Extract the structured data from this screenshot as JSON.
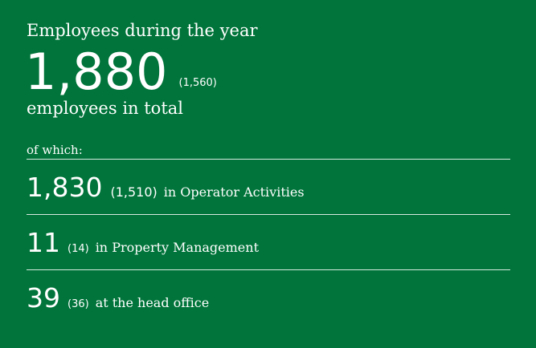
{
  "title": "Employees during the year",
  "total": {
    "value": "1,880",
    "previous": "(1,560)",
    "caption": "employees in total"
  },
  "breakdown": {
    "label": "of which:",
    "rows": [
      {
        "value": "1,830",
        "previous": "(1,510)",
        "label": "in Operator Activities"
      },
      {
        "value": "11",
        "previous": "(14)",
        "label": "in Property Management"
      },
      {
        "value": "39",
        "previous": "(36)",
        "label": "at the head office"
      }
    ]
  },
  "colors": {
    "background": "#00743a",
    "text": "#ffffff"
  }
}
